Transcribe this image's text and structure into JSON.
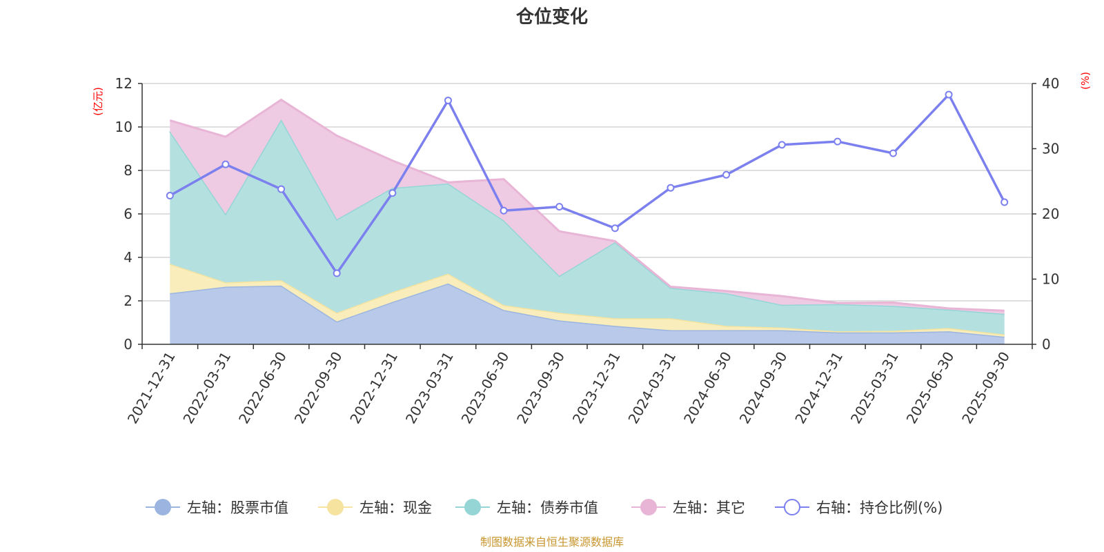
{
  "chart_data": {
    "type": "area",
    "title": "仓位变化",
    "source": "制图数据来自恒生聚源数据库",
    "left_axis": {
      "unit": "(亿元)",
      "range": [
        0,
        12
      ],
      "ticks": [
        "0",
        "2",
        "4",
        "6",
        "8",
        "10",
        "12"
      ]
    },
    "right_axis": {
      "unit": "(%)",
      "range": [
        0,
        40
      ],
      "ticks": [
        "0",
        "10",
        "20",
        "30",
        "40"
      ]
    },
    "categories": [
      "2021-12-31",
      "2022-03-31",
      "2022-06-30",
      "2022-09-30",
      "2022-12-31",
      "2023-03-31",
      "2023-06-30",
      "2023-09-30",
      "2023-12-31",
      "2024-03-31",
      "2024-06-30",
      "2024-09-30",
      "2024-12-31",
      "2025-03-31",
      "2025-06-30",
      "2025-09-30"
    ],
    "series": [
      {
        "name": "左轴：股票市值",
        "axis": "left",
        "kind": "stacked-area",
        "color": "#9bb5e0",
        "fill": "#b8c9ea",
        "values": [
          2.35,
          2.65,
          2.7,
          1.05,
          1.95,
          2.8,
          1.58,
          1.1,
          0.85,
          0.65,
          0.65,
          0.65,
          0.55,
          0.55,
          0.6,
          0.35
        ]
      },
      {
        "name": "左轴：现金",
        "axis": "left",
        "kind": "stacked-area",
        "color": "#f5e39f",
        "fill": "#f8edbb",
        "values": [
          1.35,
          0.2,
          0.25,
          0.4,
          0.45,
          0.45,
          0.22,
          0.35,
          0.35,
          0.55,
          0.2,
          0.12,
          0.05,
          0.07,
          0.15,
          0.1
        ]
      },
      {
        "name": "左轴：债券市值",
        "axis": "left",
        "kind": "stacked-area",
        "color": "#95d5d6",
        "fill": "#b4e0e0",
        "values": [
          6.1,
          3.15,
          7.4,
          4.3,
          4.8,
          4.15,
          3.9,
          1.7,
          3.5,
          1.4,
          1.5,
          1.05,
          1.25,
          1.15,
          0.85,
          0.95
        ]
      },
      {
        "name": "左轴：其它",
        "axis": "left",
        "kind": "stacked-area",
        "color": "#e8b5d6",
        "fill": "#eecbe2",
        "values": [
          0.5,
          3.55,
          0.9,
          3.85,
          1.25,
          0.05,
          1.9,
          2.05,
          0.05,
          0.05,
          0.1,
          0.4,
          0.05,
          0.15,
          0.05,
          0.15
        ]
      },
      {
        "name": "右轴：持仓比例(%)",
        "axis": "right",
        "kind": "line",
        "color": "#7b80ee",
        "values": [
          22.8,
          27.6,
          23.8,
          10.9,
          23.2,
          37.4,
          20.5,
          21.1,
          17.8,
          24.0,
          26.0,
          30.6,
          31.1,
          29.3,
          38.3,
          21.8
        ]
      }
    ],
    "legend_position": "bottom"
  }
}
